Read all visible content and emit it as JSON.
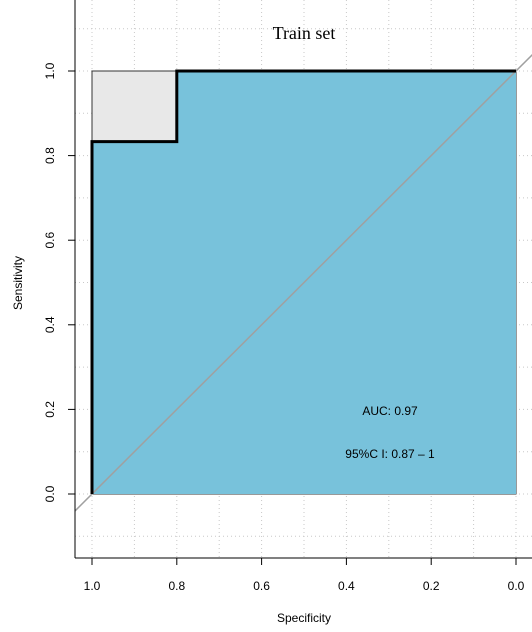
{
  "chart_data": {
    "type": "area",
    "title": "Train set",
    "xlabel": "Specificity",
    "ylabel": "Sensitivity",
    "x_reversed": true,
    "xlim": [
      1.04,
      0.0
    ],
    "ylim": [
      -0.2,
      1.14
    ],
    "x_ticks": [
      "1.0",
      "0.8",
      "0.6",
      "0.4",
      "0.2",
      "0.0"
    ],
    "x_tick_values": [
      1.0,
      0.8,
      0.6,
      0.4,
      0.2,
      0.0
    ],
    "y_ticks": [
      "0.0",
      "0.2",
      "0.4",
      "0.6",
      "0.8",
      "1.0"
    ],
    "y_tick_values": [
      0.0,
      0.2,
      0.4,
      0.6,
      0.8,
      1.0
    ],
    "grid": true,
    "series": [
      {
        "type": "line",
        "specificity": [
          1.0,
          1.0,
          0.8,
          0.8,
          0.0
        ],
        "sensitivity": [
          0.0,
          0.833,
          0.833,
          1.0,
          1.0
        ]
      }
    ],
    "annotations": [
      "AUC: 0.97",
      "95%C I: 0.87 – 1"
    ],
    "colors": {
      "auc_fill": "#78C2DB",
      "max_auc_fill": "#E8E8E8",
      "diagonal": "#A0A0A0",
      "roc_line": "#000000",
      "grid": "#C8C8C8"
    }
  }
}
